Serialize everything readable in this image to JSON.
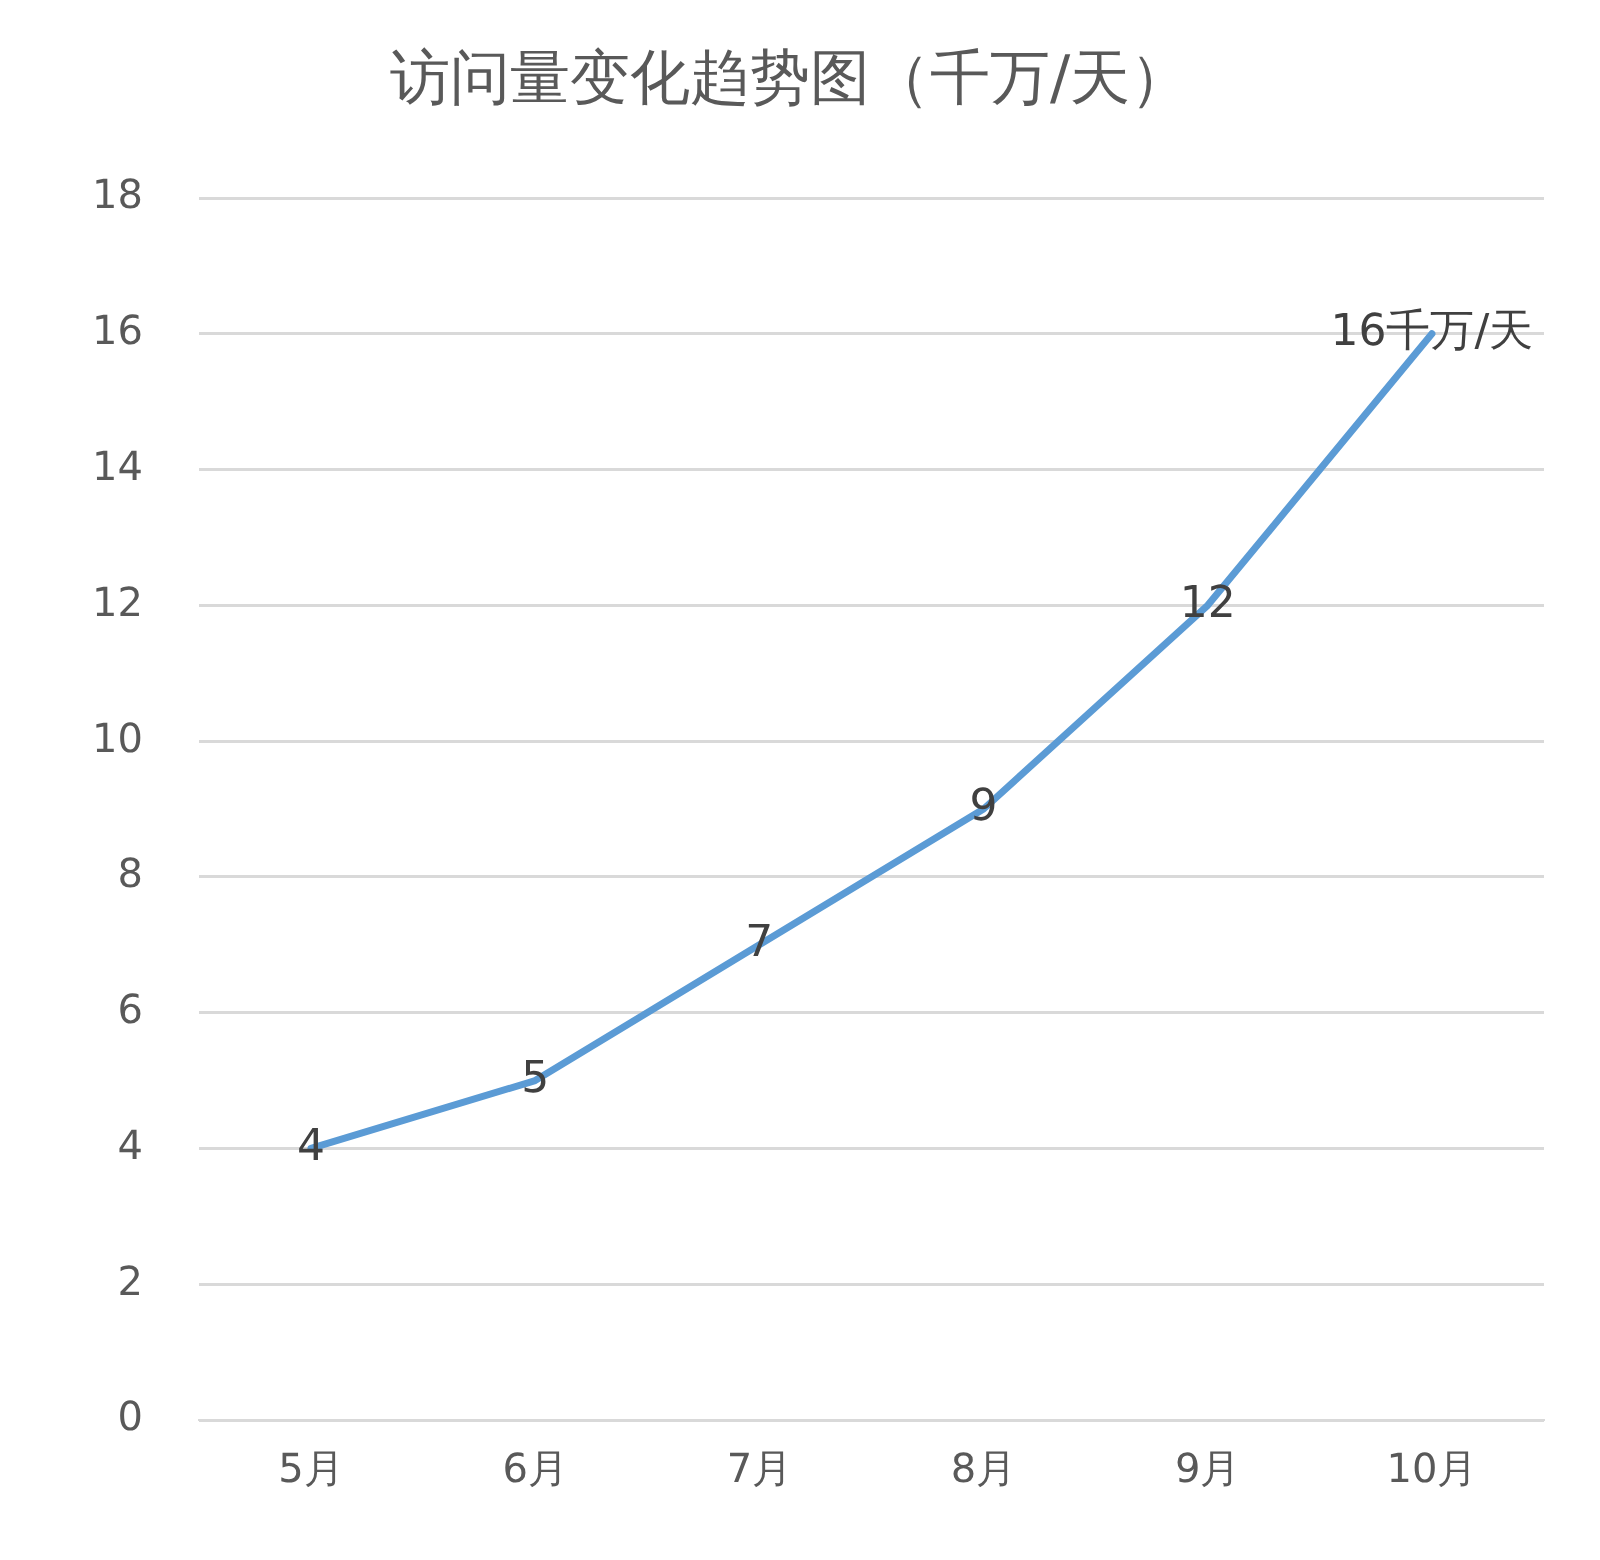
{
  "chart_data": {
    "type": "line",
    "title": "访问量变化趋势图（千万/天）",
    "categories": [
      "5月",
      "6月",
      "7月",
      "8月",
      "9月",
      "10月"
    ],
    "series": [
      {
        "color": "#5b9bd5",
        "values": [
          4,
          5,
          7,
          9,
          12,
          16
        ],
        "value_labels": [
          "4",
          "5",
          "7",
          "9",
          "12",
          "16千万/天"
        ]
      }
    ],
    "ylim": [
      0,
      18
    ],
    "yticks": [
      0,
      2,
      4,
      6,
      8,
      10,
      12,
      14,
      16,
      18
    ],
    "grid": "y",
    "legend": false,
    "marker": "none",
    "line_style": "solid"
  }
}
